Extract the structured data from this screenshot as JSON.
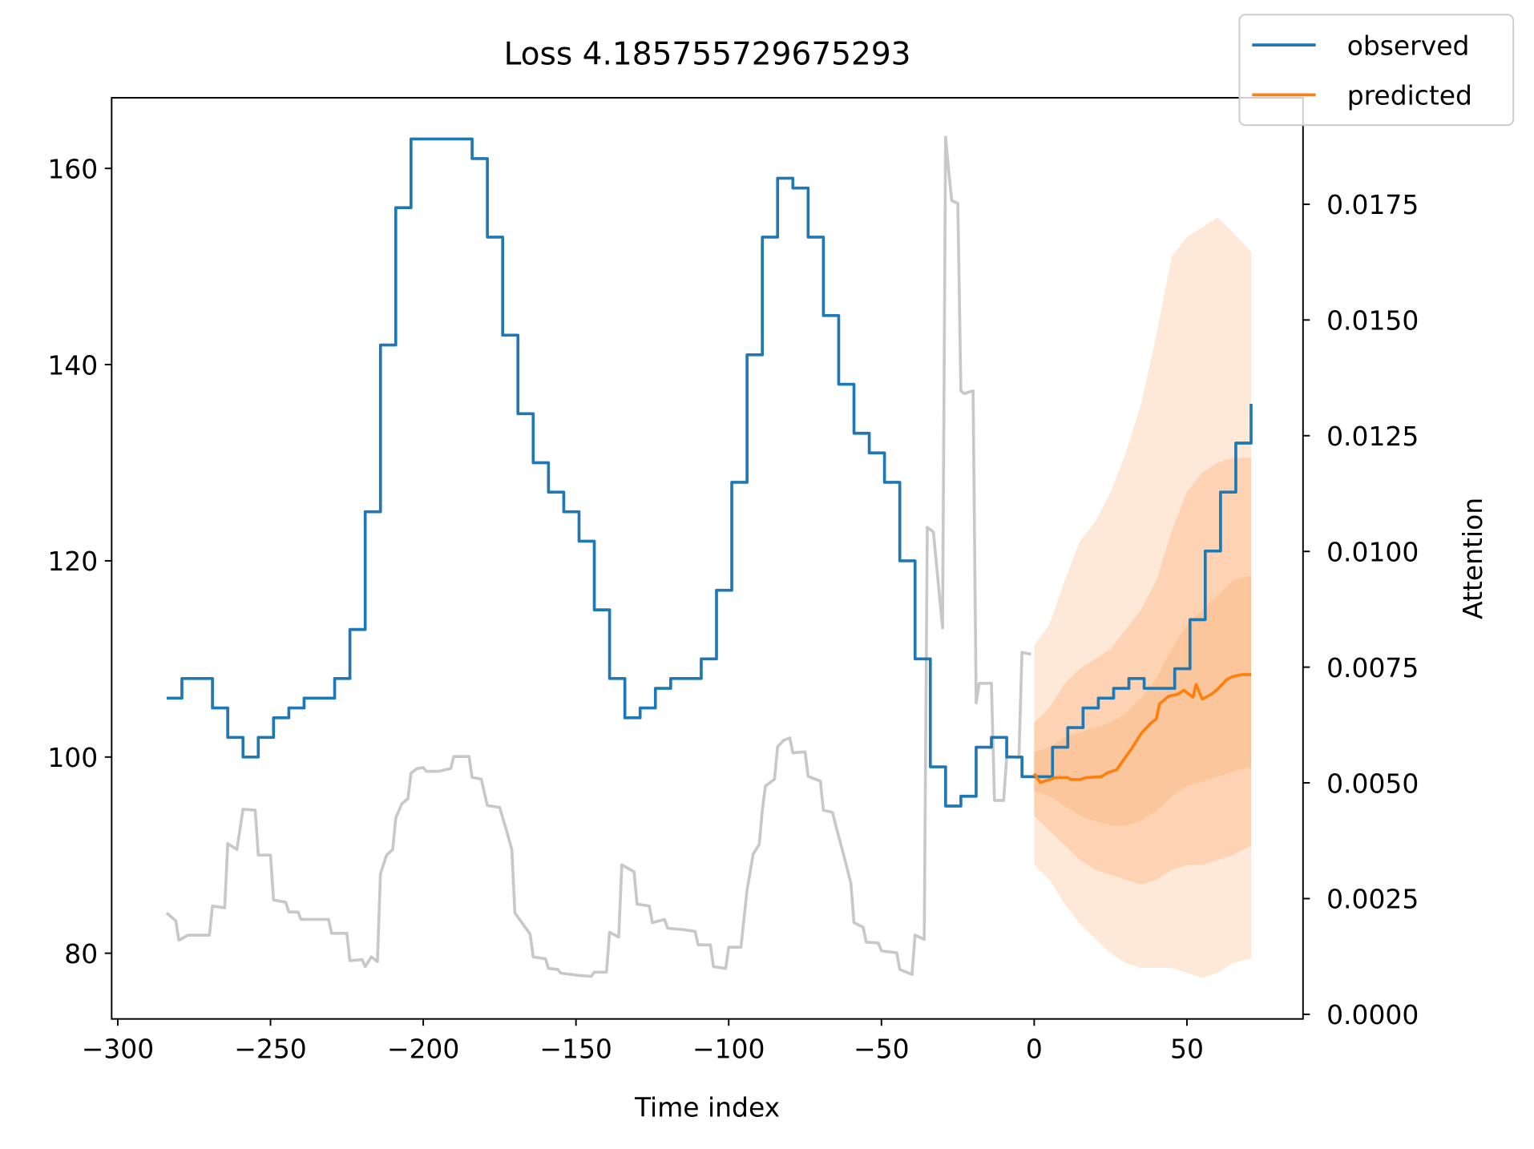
{
  "chart_data": {
    "type": "line",
    "title": "Loss 4.185755729675293",
    "x_label": "Time index",
    "y2_label": "Attention",
    "xlim": [
      -302,
      88
    ],
    "ylim": [
      73.3,
      167.2
    ],
    "y2lim": [
      -0.0001,
      0.0198
    ],
    "xticks": [
      {
        "value": -300,
        "label": "−300"
      },
      {
        "value": -250,
        "label": "−250"
      },
      {
        "value": -200,
        "label": "−200"
      },
      {
        "value": -150,
        "label": "−150"
      },
      {
        "value": -100,
        "label": "−100"
      },
      {
        "value": -50,
        "label": "−50"
      },
      0,
      50
    ],
    "yticks": [
      80,
      100,
      120,
      140,
      160
    ],
    "y2ticks": [
      {
        "value": 0,
        "label": "0.0000"
      },
      {
        "value": 0.0025,
        "label": "0.0025"
      },
      {
        "value": 0.005,
        "label": "0.0050"
      },
      {
        "value": 0.0075,
        "label": "0.0075"
      },
      {
        "value": 0.01,
        "label": "0.0100"
      },
      {
        "value": 0.0125,
        "label": "0.0125"
      },
      {
        "value": 0.015,
        "label": "0.0150"
      },
      {
        "value": 0.0175,
        "label": "0.0175"
      }
    ],
    "grid": false,
    "legend": "upper right",
    "band_x": [
      0,
      5,
      10,
      15,
      20,
      25,
      30,
      35,
      40,
      45,
      50,
      55,
      60,
      65,
      71
    ],
    "bands": [
      {
        "color": "#fee8d7",
        "lower": [
          89,
          87.5,
          85,
          83,
          81.5,
          80,
          79,
          78.5,
          78.5,
          78.5,
          78,
          77.5,
          78,
          79,
          79.5
        ],
        "upper": [
          111.4,
          113.5,
          118,
          122,
          124,
          127,
          131,
          136,
          143,
          151,
          153,
          154,
          155,
          153.5,
          151.5
        ]
      },
      {
        "color": "#fdd3b3",
        "lower": [
          94,
          92.5,
          91,
          89.5,
          88.5,
          88,
          87.5,
          87,
          87.5,
          88.5,
          89,
          89,
          89.5,
          90,
          91
        ],
        "upper": [
          103.5,
          105,
          107.5,
          109,
          110,
          111,
          113,
          115,
          118,
          123,
          127,
          129,
          130,
          130.5,
          130.5
        ]
      },
      {
        "color": "#fcc69c",
        "lower": [
          96.5,
          96,
          95,
          94,
          93.5,
          93,
          93,
          93.5,
          94.5,
          96,
          97,
          97.5,
          98,
          98.5,
          99
        ],
        "upper": [
          100.5,
          101,
          102,
          102.5,
          103,
          103.5,
          104.5,
          106,
          108,
          111,
          113.5,
          115,
          116.5,
          118,
          118.5
        ]
      }
    ],
    "series": [
      {
        "color": "#c8c8c8",
        "axis": "y2",
        "x": [
          -284,
          -281,
          -280,
          -277,
          -270,
          -269,
          -265,
          -264,
          -261,
          -259,
          -255,
          -254,
          -250,
          -249,
          -245,
          -244,
          -241,
          -240,
          -231,
          -230,
          -225,
          -224,
          -220,
          -219,
          -217,
          -215,
          -214,
          -212,
          -210,
          -209,
          -207,
          -205,
          -204,
          -202,
          -200,
          -199,
          -195,
          -191,
          -190,
          -185,
          -184,
          -181,
          -179,
          -175,
          -173,
          -171,
          -170,
          -165,
          -164,
          -160,
          -159,
          -156,
          -155,
          -149,
          -145,
          -144,
          -140,
          -139,
          -136,
          -135,
          -131,
          -130,
          -126,
          -125,
          -121,
          -120,
          -115,
          -111,
          -110,
          -106,
          -105,
          -101,
          -100,
          -96,
          -94,
          -92,
          -90,
          -89,
          -88,
          -85,
          -84,
          -82,
          -80,
          -79,
          -75,
          -74,
          -70,
          -69,
          -66,
          -65,
          -62,
          -60,
          -59,
          -56,
          -55,
          -51,
          -50,
          -45,
          -44,
          -40,
          -39,
          -36,
          -35,
          -33,
          -30,
          -29,
          -28,
          -27,
          -25,
          -24,
          -23,
          -20,
          -19,
          -18,
          -14,
          -13,
          -10,
          -9,
          -5,
          -4,
          -1
        ],
        "values": [
          0.00219,
          0.00202,
          0.0016,
          0.00171,
          0.00171,
          0.00234,
          0.0023,
          0.00369,
          0.00356,
          0.00443,
          0.00441,
          0.00344,
          0.00344,
          0.00247,
          0.00242,
          0.00221,
          0.00221,
          0.00205,
          0.00205,
          0.00175,
          0.00175,
          0.00116,
          0.00118,
          0.00103,
          0.00124,
          0.00114,
          0.00304,
          0.00344,
          0.00356,
          0.00424,
          0.00455,
          0.00466,
          0.00521,
          0.00531,
          0.00533,
          0.00525,
          0.00525,
          0.00531,
          0.00557,
          0.00557,
          0.00512,
          0.00508,
          0.00451,
          0.00447,
          0.00403,
          0.00356,
          0.00219,
          0.00173,
          0.00124,
          0.0012,
          0.00099,
          0.00097,
          0.00089,
          0.00084,
          0.00082,
          0.00091,
          0.00091,
          0.00177,
          0.00167,
          0.00323,
          0.00308,
          0.00238,
          0.00234,
          0.00198,
          0.00205,
          0.00186,
          0.00183,
          0.00179,
          0.0015,
          0.0015,
          0.00103,
          0.00099,
          0.00145,
          0.00145,
          0.00268,
          0.00346,
          0.00367,
          0.00441,
          0.00493,
          0.00508,
          0.00578,
          0.00592,
          0.00597,
          0.00565,
          0.00567,
          0.00514,
          0.00504,
          0.00441,
          0.00436,
          0.00409,
          0.00335,
          0.00283,
          0.00198,
          0.00188,
          0.00156,
          0.00154,
          0.00137,
          0.00133,
          0.00097,
          0.00086,
          0.00171,
          0.00162,
          0.01052,
          0.01042,
          0.00835,
          0.01895,
          0.01822,
          0.01758,
          0.01752,
          0.01347,
          0.01341,
          0.01347,
          0.00673,
          0.00715,
          0.00715,
          0.00462,
          0.00462,
          0.00557,
          0.00555,
          0.00782,
          0.00778
        ]
      },
      {
        "name": "observed",
        "color": "#1f77b4",
        "drawstyle": "steps-post",
        "x": [
          -284,
          -279,
          -269,
          -264,
          -259,
          -254,
          -249,
          -244,
          -239,
          -229,
          -224,
          -219,
          -214,
          -209,
          -204,
          -184,
          -179,
          -174,
          -169,
          -164,
          -159,
          -154,
          -149,
          -144,
          -139,
          -134,
          -129,
          -124,
          -119,
          -109,
          -104,
          -99,
          -94,
          -89,
          -84,
          -79,
          -74,
          -69,
          -64,
          -59,
          -54,
          -49,
          -44,
          -39,
          -34,
          -29,
          -24,
          -19,
          -14,
          -9,
          -4,
          6,
          11,
          16,
          21,
          26,
          31,
          36,
          46,
          51,
          56,
          61,
          66,
          71
        ],
        "values": [
          106,
          108,
          105,
          102,
          100,
          102,
          104,
          105,
          106,
          108,
          113,
          125,
          142,
          156,
          163,
          161,
          153,
          143,
          135,
          130,
          127,
          125,
          122,
          115,
          108,
          104,
          105,
          107,
          108,
          110,
          117,
          128,
          141,
          153,
          159,
          158,
          153,
          145,
          138,
          133,
          131,
          128,
          120,
          110,
          99,
          95,
          96,
          101,
          102,
          100,
          98,
          101,
          103,
          105,
          106,
          107,
          108,
          107,
          109,
          114,
          121,
          127,
          132,
          136
        ]
      },
      {
        "name": "predicted",
        "color": "#ff7f0e",
        "x": [
          0,
          2,
          5,
          7,
          11,
          12,
          15,
          17,
          22,
          24,
          27,
          29,
          32,
          35,
          38,
          40,
          41,
          44,
          47,
          49,
          52,
          53,
          55,
          58,
          60,
          63,
          65,
          68,
          71
        ],
        "values": [
          98.3,
          97.4,
          97.7,
          97.9,
          97.9,
          97.7,
          97.7,
          97.9,
          98,
          98.4,
          98.7,
          99.6,
          100.9,
          102.4,
          103.4,
          103.9,
          105.4,
          106.2,
          106.4,
          106.8,
          106.1,
          107.4,
          105.9,
          106.4,
          106.9,
          107.9,
          108.2,
          108.4,
          108.4
        ]
      }
    ]
  }
}
